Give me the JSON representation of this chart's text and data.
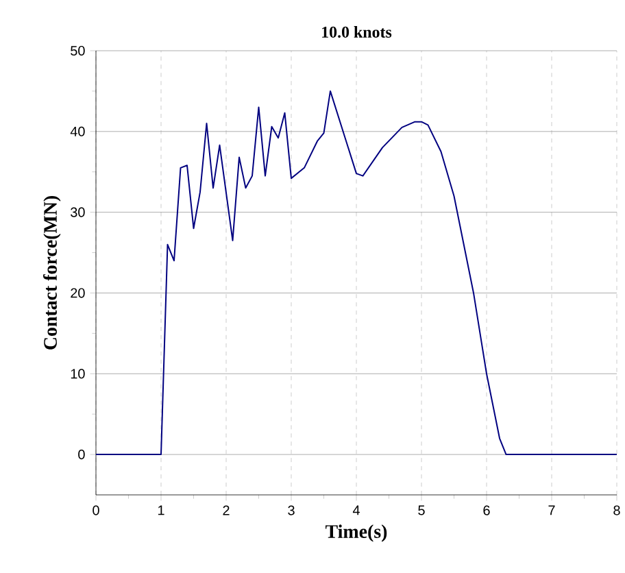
{
  "chart_data": {
    "type": "line",
    "title": "10.0 knots",
    "xlabel": "Time(s)",
    "ylabel": "Contact force(MN)",
    "x": [
      0,
      1,
      1.1,
      1.2,
      1.3,
      1.4,
      1.5,
      1.6,
      1.7,
      1.8,
      1.9,
      2.1,
      2.2,
      2.3,
      2.4,
      2.5,
      2.6,
      2.7,
      2.8,
      2.9,
      3.0,
      3.2,
      3.4,
      3.5,
      3.6,
      4.0,
      4.1,
      4.4,
      4.7,
      4.9,
      5.0,
      5.1,
      5.3,
      5.5,
      5.8,
      6.0,
      6.2,
      6.3,
      8
    ],
    "series": [
      {
        "color": "#000080",
        "values": [
          0,
          0,
          26,
          24,
          35.5,
          35.8,
          28,
          32.5,
          41,
          33,
          38.3,
          26.5,
          36.8,
          33,
          34.5,
          43,
          34.5,
          40.6,
          39.2,
          42.3,
          34.2,
          35.5,
          38.8,
          39.8,
          45,
          34.8,
          34.5,
          38,
          40.5,
          41.2,
          41.2,
          40.8,
          37.5,
          32,
          20,
          10,
          2,
          0,
          0
        ]
      }
    ],
    "xlim": [
      0,
      8
    ],
    "ylim": [
      -5,
      50
    ],
    "xticks": [
      0,
      1,
      2,
      3,
      4,
      5,
      6,
      7,
      8
    ],
    "yticks": [
      0,
      10,
      20,
      30,
      40,
      50
    ],
    "grid": true,
    "marker": "none",
    "line_style": "solid"
  }
}
